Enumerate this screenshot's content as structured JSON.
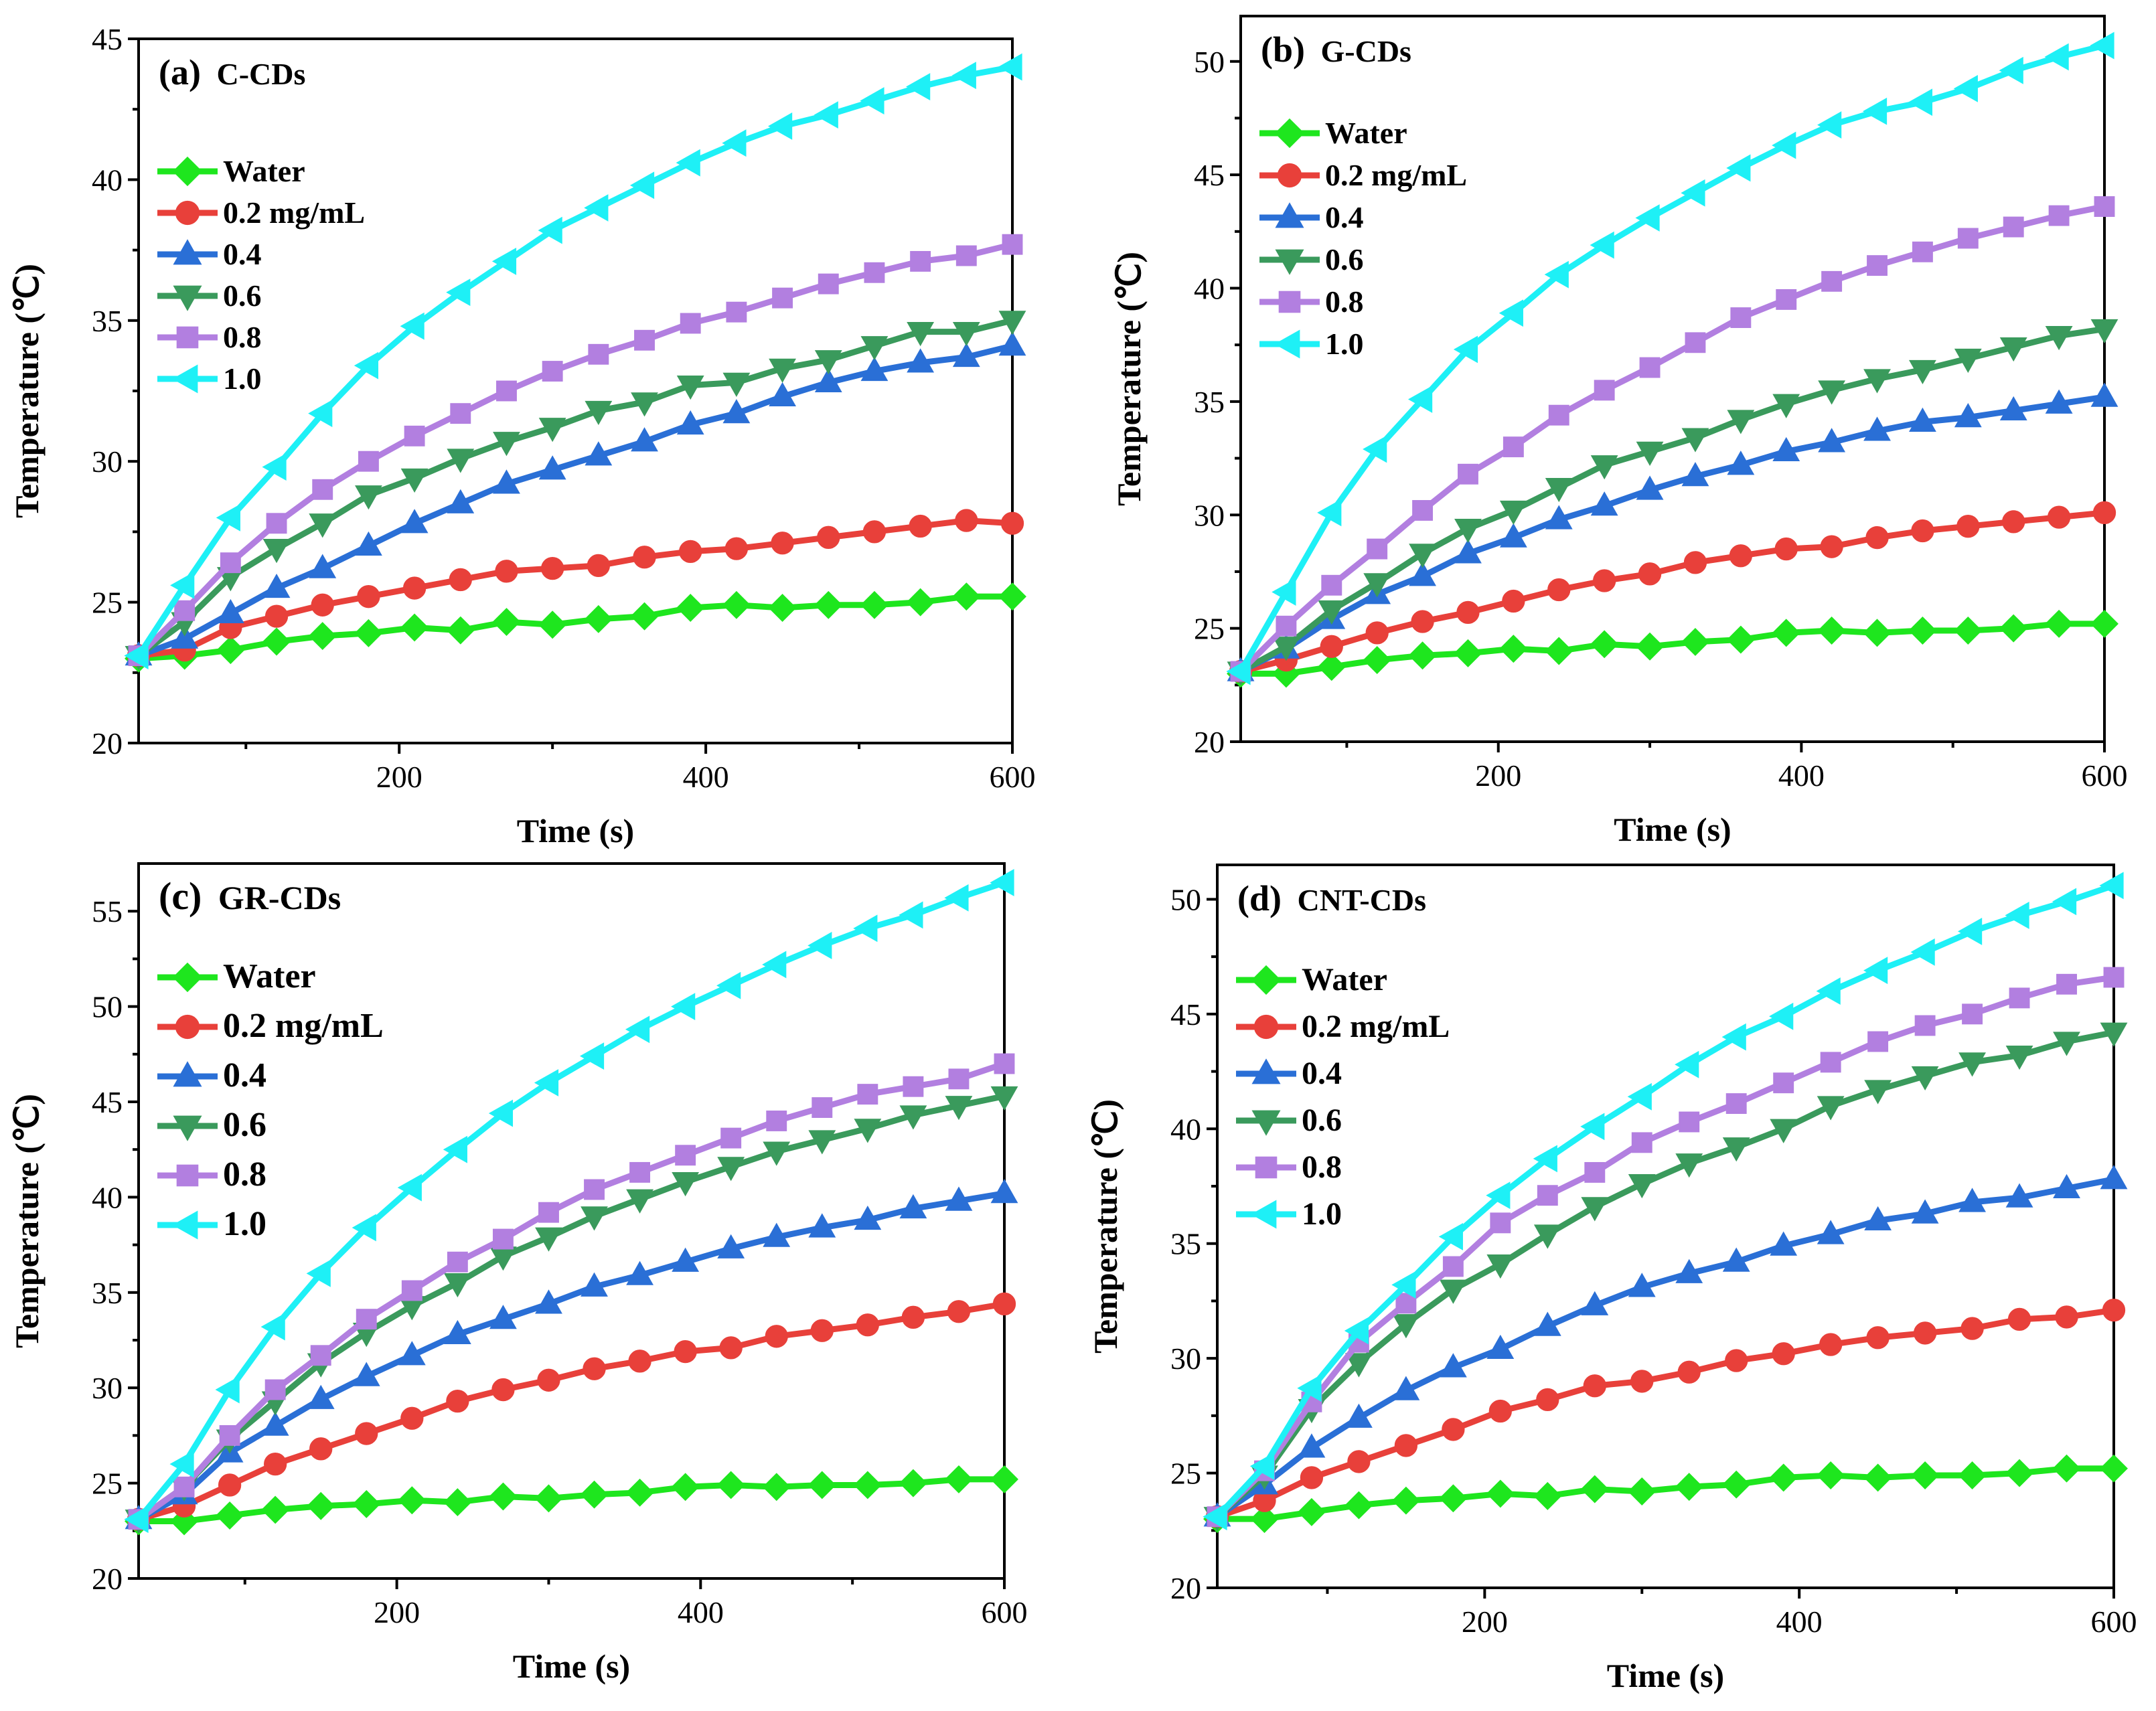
{
  "colors": {
    "Water": "#1ee61e",
    "0.2 mg/mL": "#e8403a",
    "0.4": "#2a6fd6",
    "0.6": "#3a9a5c",
    "0.8": "#b27fe0",
    "1.0": "#1ef0f6"
  },
  "markers": {
    "Water": "diamond",
    "0.2 mg/mL": "circle",
    "0.4": "triangle-up",
    "0.6": "triangle-down",
    "0.8": "square",
    "1.0": "triangle-left"
  },
  "chart_data": [
    {
      "id": "a",
      "type": "line",
      "label": "(a)",
      "title": "C-CDs",
      "xlabel": "Time (s)",
      "ylabel": "Temperature (℃)",
      "xlim": [
        30,
        600
      ],
      "ylim": [
        20,
        45
      ],
      "xticks": [
        200,
        400,
        600
      ],
      "yticks": [
        20,
        25,
        30,
        35,
        40,
        45
      ],
      "x": [
        30,
        60,
        90,
        120,
        150,
        180,
        210,
        240,
        270,
        300,
        330,
        360,
        390,
        420,
        450,
        480,
        510,
        540,
        570,
        600
      ],
      "series": [
        {
          "name": "Water",
          "values": [
            23.0,
            23.1,
            23.3,
            23.6,
            23.8,
            23.9,
            24.1,
            24.0,
            24.3,
            24.2,
            24.4,
            24.5,
            24.8,
            24.9,
            24.8,
            24.9,
            24.9,
            25.0,
            25.2,
            25.2
          ]
        },
        {
          "name": "0.2 mg/mL",
          "values": [
            23.1,
            23.3,
            24.1,
            24.5,
            24.9,
            25.2,
            25.5,
            25.8,
            26.1,
            26.2,
            26.3,
            26.6,
            26.8,
            26.9,
            27.1,
            27.3,
            27.5,
            27.7,
            27.9,
            27.8
          ]
        },
        {
          "name": "0.4",
          "values": [
            23.1,
            23.7,
            24.6,
            25.5,
            26.2,
            27.0,
            27.8,
            28.5,
            29.2,
            29.7,
            30.2,
            30.7,
            31.3,
            31.7,
            32.3,
            32.8,
            33.2,
            33.5,
            33.7,
            34.1
          ]
        },
        {
          "name": "0.6",
          "values": [
            23.1,
            24.3,
            25.9,
            26.9,
            27.8,
            28.8,
            29.4,
            30.1,
            30.7,
            31.2,
            31.8,
            32.1,
            32.7,
            32.8,
            33.3,
            33.6,
            34.1,
            34.6,
            34.6,
            35.0
          ]
        },
        {
          "name": "0.8",
          "values": [
            23.1,
            24.7,
            26.4,
            27.8,
            29.0,
            30.0,
            30.9,
            31.7,
            32.5,
            33.2,
            33.8,
            34.3,
            34.9,
            35.3,
            35.8,
            36.3,
            36.7,
            37.1,
            37.3,
            37.7
          ]
        },
        {
          "name": "1.0",
          "values": [
            23.1,
            25.6,
            28.0,
            29.8,
            31.7,
            33.4,
            34.8,
            36.0,
            37.1,
            38.2,
            39.0,
            39.8,
            40.6,
            41.3,
            41.9,
            42.3,
            42.8,
            43.3,
            43.7,
            44.0
          ]
        }
      ]
    },
    {
      "id": "b",
      "type": "line",
      "label": "(b)",
      "title": "G-CDs",
      "xlabel": "Time (s)",
      "ylabel": "Temperature (℃)",
      "xlim": [
        30,
        600
      ],
      "ylim": [
        20,
        52
      ],
      "xticks": [
        200,
        400,
        600
      ],
      "yticks": [
        20,
        25,
        30,
        35,
        40,
        45,
        50
      ],
      "x": [
        30,
        60,
        90,
        120,
        150,
        180,
        210,
        240,
        270,
        300,
        330,
        360,
        390,
        420,
        450,
        480,
        510,
        540,
        570,
        600
      ],
      "series": [
        {
          "name": "Water",
          "values": [
            23.0,
            23.0,
            23.3,
            23.6,
            23.8,
            23.9,
            24.1,
            24.0,
            24.3,
            24.2,
            24.4,
            24.5,
            24.8,
            24.9,
            24.8,
            24.9,
            24.9,
            25.0,
            25.2,
            25.2
          ]
        },
        {
          "name": "0.2 mg/mL",
          "values": [
            23.1,
            23.6,
            24.2,
            24.8,
            25.3,
            25.7,
            26.2,
            26.7,
            27.1,
            27.4,
            27.9,
            28.2,
            28.5,
            28.6,
            29.0,
            29.3,
            29.5,
            29.7,
            29.9,
            30.1
          ]
        },
        {
          "name": "0.4",
          "values": [
            23.1,
            24.1,
            25.4,
            26.5,
            27.3,
            28.3,
            29.0,
            29.8,
            30.4,
            31.1,
            31.7,
            32.2,
            32.8,
            33.2,
            33.7,
            34.1,
            34.3,
            34.6,
            34.9,
            35.2
          ]
        },
        {
          "name": "0.6",
          "values": [
            23.1,
            24.2,
            25.8,
            27.0,
            28.3,
            29.4,
            30.2,
            31.2,
            32.2,
            32.8,
            33.4,
            34.2,
            34.9,
            35.5,
            36.0,
            36.4,
            36.9,
            37.4,
            37.9,
            38.2
          ]
        },
        {
          "name": "0.8",
          "values": [
            23.1,
            25.1,
            26.9,
            28.5,
            30.2,
            31.8,
            33.0,
            34.4,
            35.5,
            36.5,
            37.6,
            38.7,
            39.5,
            40.3,
            41.0,
            41.6,
            42.2,
            42.7,
            43.2,
            43.6
          ]
        },
        {
          "name": "1.0",
          "values": [
            23.1,
            26.6,
            30.1,
            32.9,
            35.1,
            37.3,
            38.9,
            40.6,
            41.9,
            43.1,
            44.2,
            45.3,
            46.3,
            47.2,
            47.8,
            48.2,
            48.8,
            49.6,
            50.2,
            50.7
          ]
        }
      ]
    },
    {
      "id": "c",
      "type": "line",
      "label": "(c)",
      "title": "GR-CDs",
      "xlabel": "Time (s)",
      "ylabel": "Temperature (℃)",
      "xlim": [
        30,
        600
      ],
      "ylim": [
        20,
        57.5
      ],
      "xticks": [
        200,
        400,
        600
      ],
      "yticks": [
        20,
        25,
        30,
        35,
        40,
        45,
        50,
        55
      ],
      "x": [
        30,
        60,
        90,
        120,
        150,
        180,
        210,
        240,
        270,
        300,
        330,
        360,
        390,
        420,
        450,
        480,
        510,
        540,
        570,
        600
      ],
      "series": [
        {
          "name": "Water",
          "values": [
            23.0,
            23.0,
            23.3,
            23.6,
            23.8,
            23.9,
            24.1,
            24.0,
            24.3,
            24.2,
            24.4,
            24.5,
            24.8,
            24.9,
            24.8,
            24.9,
            24.9,
            25.0,
            25.2,
            25.2
          ]
        },
        {
          "name": "0.2 mg/mL",
          "values": [
            23.1,
            23.8,
            24.9,
            26.0,
            26.8,
            27.6,
            28.4,
            29.3,
            29.9,
            30.4,
            31.0,
            31.4,
            31.9,
            32.1,
            32.7,
            33.0,
            33.3,
            33.7,
            34.0,
            34.4
          ]
        },
        {
          "name": "0.4",
          "values": [
            23.1,
            24.4,
            26.6,
            28.0,
            29.4,
            30.6,
            31.7,
            32.8,
            33.6,
            34.4,
            35.3,
            35.9,
            36.6,
            37.3,
            37.9,
            38.4,
            38.8,
            39.4,
            39.8,
            40.2
          ]
        },
        {
          "name": "0.6",
          "values": [
            23.1,
            24.8,
            27.3,
            29.3,
            31.3,
            32.9,
            34.3,
            35.5,
            36.9,
            37.9,
            39.0,
            39.9,
            40.8,
            41.6,
            42.4,
            43.0,
            43.6,
            44.3,
            44.8,
            45.3
          ]
        },
        {
          "name": "0.8",
          "values": [
            23.1,
            24.8,
            27.5,
            29.9,
            31.7,
            33.6,
            35.1,
            36.6,
            37.8,
            39.2,
            40.4,
            41.3,
            42.2,
            43.1,
            44.0,
            44.7,
            45.4,
            45.8,
            46.2,
            47.0
          ]
        },
        {
          "name": "1.0",
          "values": [
            23.1,
            26.0,
            29.9,
            33.2,
            36.0,
            38.4,
            40.5,
            42.5,
            44.4,
            46.0,
            47.4,
            48.8,
            50.0,
            51.1,
            52.2,
            53.2,
            54.1,
            54.8,
            55.7,
            56.5
          ]
        }
      ]
    },
    {
      "id": "d",
      "type": "line",
      "label": "(d)",
      "title": "CNT-CDs",
      "xlabel": "Time (s)",
      "ylabel": "Temperature (℃)",
      "xlim": [
        30,
        600
      ],
      "ylim": [
        20,
        51.5
      ],
      "xticks": [
        200,
        400,
        600
      ],
      "yticks": [
        20,
        25,
        30,
        35,
        40,
        45,
        50
      ],
      "x": [
        30,
        60,
        90,
        120,
        150,
        180,
        210,
        240,
        270,
        300,
        330,
        360,
        390,
        420,
        450,
        480,
        510,
        540,
        570,
        600
      ],
      "series": [
        {
          "name": "Water",
          "values": [
            23.0,
            23.0,
            23.3,
            23.6,
            23.8,
            23.9,
            24.1,
            24.0,
            24.3,
            24.2,
            24.4,
            24.5,
            24.8,
            24.9,
            24.8,
            24.9,
            24.9,
            25.0,
            25.2,
            25.2
          ]
        },
        {
          "name": "0.2 mg/mL",
          "values": [
            23.1,
            23.8,
            24.8,
            25.5,
            26.2,
            26.9,
            27.7,
            28.2,
            28.8,
            29.0,
            29.4,
            29.9,
            30.2,
            30.6,
            30.9,
            31.1,
            31.3,
            31.7,
            31.8,
            32.1
          ]
        },
        {
          "name": "0.4",
          "values": [
            23.1,
            24.5,
            26.1,
            27.4,
            28.6,
            29.6,
            30.4,
            31.4,
            32.3,
            33.1,
            33.7,
            34.2,
            34.9,
            35.4,
            36.0,
            36.3,
            36.8,
            37.0,
            37.4,
            37.8
          ]
        },
        {
          "name": "0.6",
          "values": [
            23.1,
            24.9,
            27.8,
            29.8,
            31.5,
            33.0,
            34.1,
            35.4,
            36.6,
            37.6,
            38.5,
            39.2,
            40.0,
            41.0,
            41.7,
            42.3,
            42.9,
            43.2,
            43.8,
            44.2
          ]
        },
        {
          "name": "0.8",
          "values": [
            23.1,
            25.1,
            28.1,
            30.7,
            32.4,
            34.0,
            35.9,
            37.1,
            38.1,
            39.4,
            40.3,
            41.1,
            42.0,
            42.9,
            43.8,
            44.5,
            45.0,
            45.7,
            46.3,
            46.6
          ]
        },
        {
          "name": "1.0",
          "values": [
            23.1,
            25.3,
            28.7,
            31.2,
            33.2,
            35.3,
            37.1,
            38.7,
            40.1,
            41.4,
            42.8,
            44.0,
            44.9,
            46.0,
            46.9,
            47.7,
            48.6,
            49.3,
            49.9,
            50.6
          ]
        }
      ]
    }
  ]
}
